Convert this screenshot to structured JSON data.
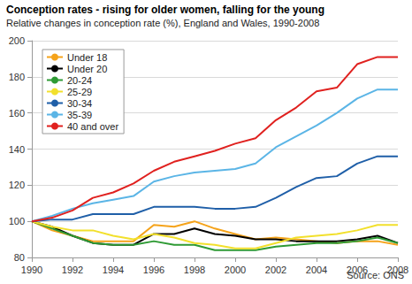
{
  "chart_data": {
    "type": "line",
    "title": "Conception rates - rising for older women, falling for the young",
    "subtitle": "Relative changes in conception rate (%), England and Wales, 1990-2008",
    "source": "Source: ONS",
    "x": [
      1990,
      1991,
      1992,
      1993,
      1994,
      1995,
      1996,
      1997,
      1998,
      1999,
      2000,
      2001,
      2002,
      2003,
      2004,
      2005,
      2006,
      2007,
      2008
    ],
    "xlim": [
      1990,
      2008
    ],
    "xticks": [
      1990,
      1992,
      1994,
      1996,
      1998,
      2000,
      2002,
      2004,
      2006,
      2008
    ],
    "ylim": [
      80,
      200
    ],
    "yticks": [
      80,
      100,
      120,
      140,
      160,
      180,
      200
    ],
    "grid": true,
    "legend": "upper left",
    "series": [
      {
        "name": "Under 18",
        "color": "#f5a31a",
        "values": [
          100,
          95,
          92,
          89,
          89,
          89,
          98,
          97,
          100,
          96,
          93,
          90,
          91,
          90,
          89,
          88,
          89,
          89,
          87
        ]
      },
      {
        "name": "Under 20",
        "color": "#000000",
        "values": [
          100,
          97,
          92,
          88,
          87,
          87,
          93,
          93,
          96,
          93,
          92,
          90,
          90,
          89,
          89,
          89,
          90,
          92,
          88
        ]
      },
      {
        "name": "20-24",
        "color": "#2e9a34",
        "values": [
          100,
          96,
          92,
          88,
          87,
          87,
          89,
          87,
          87,
          84,
          84,
          84,
          86,
          87,
          88,
          88,
          89,
          91,
          88
        ]
      },
      {
        "name": "25-29",
        "color": "#f2e02c",
        "values": [
          100,
          97,
          95,
          95,
          92,
          90,
          93,
          91,
          88,
          87,
          85,
          85,
          88,
          91,
          92,
          93,
          95,
          98,
          98
        ]
      },
      {
        "name": "30-34",
        "color": "#1f5fa8",
        "values": [
          100,
          101,
          101,
          104,
          104,
          104,
          108,
          108,
          108,
          107,
          107,
          108,
          113,
          119,
          124,
          125,
          132,
          136,
          136
        ]
      },
      {
        "name": "35-39",
        "color": "#5bb5e6",
        "values": [
          100,
          103,
          107,
          110,
          112,
          114,
          122,
          125,
          127,
          128,
          129,
          132,
          141,
          147,
          153,
          160,
          168,
          173,
          173
        ]
      },
      {
        "name": "40 and over",
        "color": "#e0211f",
        "values": [
          100,
          102,
          106,
          113,
          116,
          121,
          128,
          133,
          136,
          139,
          143,
          146,
          156,
          163,
          172,
          174,
          187,
          191,
          191
        ]
      }
    ]
  }
}
